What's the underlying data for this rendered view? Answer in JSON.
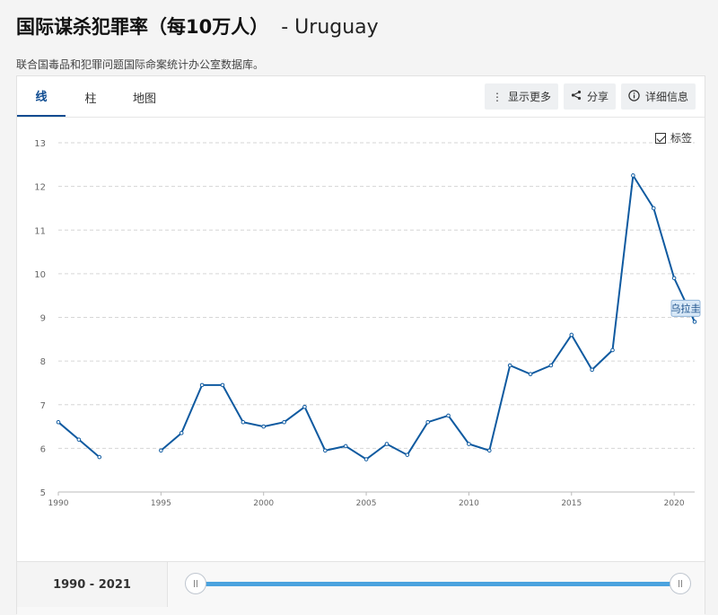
{
  "header": {
    "title": "国际谋杀犯罪率（每10万人）",
    "country": "- Uruguay",
    "source": "联合国毒品和犯罪问题国际命案统计办公室数据库。"
  },
  "tabs": [
    {
      "label": "线",
      "active": true
    },
    {
      "label": "柱",
      "active": false
    },
    {
      "label": "地图",
      "active": false
    }
  ],
  "actions": {
    "more": {
      "icon": "more-vertical-icon",
      "label": "显示更多"
    },
    "share": {
      "icon": "share-icon",
      "label": "分享"
    },
    "details": {
      "icon": "info-icon",
      "label": "详细信息"
    }
  },
  "legend": {
    "label": "标签",
    "checked": true
  },
  "range": {
    "label": "1990 - 2021",
    "start": 1990,
    "end": 2021
  },
  "colors": {
    "line": "#0f5aa0",
    "accent": "#0f4c91",
    "slider": "#4ba3de"
  },
  "chart_data": {
    "type": "line",
    "title": "",
    "xlabel": "",
    "ylabel": "",
    "ylim": [
      5,
      13
    ],
    "xlim": [
      1990,
      2021
    ],
    "yticks": [
      5,
      6,
      7,
      8,
      9,
      10,
      11,
      12,
      13
    ],
    "xticks": [
      1990,
      1995,
      2000,
      2005,
      2010,
      2015,
      2020
    ],
    "grid": true,
    "series": [
      {
        "name": "乌拉圭",
        "points": [
          {
            "x": 1990,
            "y": 6.6
          },
          {
            "x": 1991,
            "y": 6.2
          },
          {
            "x": 1992,
            "y": 5.8
          },
          {
            "x": 1993,
            "y": null
          },
          {
            "x": 1994,
            "y": null
          },
          {
            "x": 1995,
            "y": 5.95
          },
          {
            "x": 1996,
            "y": 6.35
          },
          {
            "x": 1997,
            "y": 7.45
          },
          {
            "x": 1998,
            "y": 7.45
          },
          {
            "x": 1999,
            "y": 6.6
          },
          {
            "x": 2000,
            "y": 6.5
          },
          {
            "x": 2001,
            "y": 6.6
          },
          {
            "x": 2002,
            "y": 6.95
          },
          {
            "x": 2003,
            "y": 5.95
          },
          {
            "x": 2004,
            "y": 6.05
          },
          {
            "x": 2005,
            "y": 5.75
          },
          {
            "x": 2006,
            "y": 6.1
          },
          {
            "x": 2007,
            "y": 5.85
          },
          {
            "x": 2008,
            "y": 6.6
          },
          {
            "x": 2009,
            "y": 6.75
          },
          {
            "x": 2010,
            "y": 6.1
          },
          {
            "x": 2011,
            "y": 5.95
          },
          {
            "x": 2012,
            "y": 7.9
          },
          {
            "x": 2013,
            "y": 7.7
          },
          {
            "x": 2014,
            "y": 7.9
          },
          {
            "x": 2015,
            "y": 8.6
          },
          {
            "x": 2016,
            "y": 7.8
          },
          {
            "x": 2017,
            "y": 8.25
          },
          {
            "x": 2018,
            "y": 12.25
          },
          {
            "x": 2019,
            "y": 11.5
          },
          {
            "x": 2020,
            "y": 9.9
          },
          {
            "x": 2021,
            "y": 8.9
          }
        ]
      }
    ]
  }
}
